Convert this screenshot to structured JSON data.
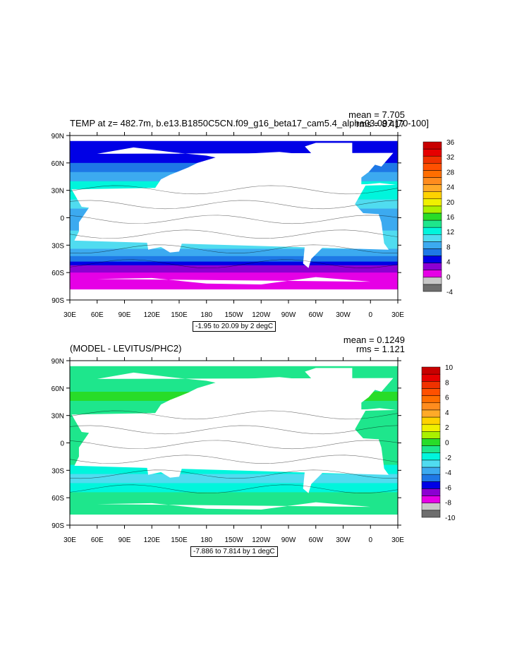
{
  "panels": [
    {
      "title": "TEMP at z= 482.7m, b.e13.B1850C5CN.f09_g16_beta17_cam5.4_alpha03.097 [70-100]",
      "mean_text": "mean = 7.705",
      "rms_text": "rms = 8.417",
      "contour_info": "-1.95 to 20.09 by 2 degC"
    },
    {
      "title": "(MODEL - LEVITUS/PHC2)",
      "mean_text": "mean = 0.1249",
      "rms_text": "rms = 1.121",
      "contour_info": "-7.886 to 7.814 by 1 degC"
    }
  ],
  "chart_data": [
    {
      "type": "heatmap",
      "title": "TEMP at z= 482.7m, b.e13.B1850C5CN.f09_g16_beta17_cam5.4_alpha03.097 [70-100]",
      "x_tick_labels": [
        "30E",
        "60E",
        "90E",
        "120E",
        "150E",
        "180",
        "150W",
        "120W",
        "90W",
        "60W",
        "30W",
        "0",
        "30E"
      ],
      "y_tick_labels": [
        "90N",
        "60N",
        "30N",
        "0",
        "30S",
        "60S",
        "90S"
      ],
      "xlim": [
        30,
        390
      ],
      "ylim": [
        -90,
        90
      ],
      "colorbar_levels": [
        -4,
        0,
        4,
        8,
        12,
        16,
        20,
        24,
        28,
        32,
        36
      ],
      "colorbar_colors": [
        "#6e6e6e",
        "#c8c8c8",
        "#e600e6",
        "#8c00d2",
        "#0000e6",
        "#1e78e6",
        "#3caaf0",
        "#50dcf0",
        "#00f5dc",
        "#1ee68c",
        "#28dc28",
        "#aaf000",
        "#f0f000",
        "#ffd200",
        "#ffaa28",
        "#ff8c1e",
        "#ff6e00",
        "#ff5000",
        "#f03200",
        "#e60000",
        "#c80000"
      ],
      "mean": 7.705,
      "rms": 8.417,
      "contour_range": [
        -1.95,
        20.09
      ],
      "contour_interval": 2
    },
    {
      "type": "heatmap",
      "title": "(MODEL - LEVITUS/PHC2)",
      "x_tick_labels": [
        "30E",
        "60E",
        "90E",
        "120E",
        "150E",
        "180",
        "150W",
        "120W",
        "90W",
        "60W",
        "30W",
        "0",
        "30E"
      ],
      "y_tick_labels": [
        "90N",
        "60N",
        "30N",
        "0",
        "30S",
        "60S",
        "90S"
      ],
      "xlim": [
        30,
        390
      ],
      "ylim": [
        -90,
        90
      ],
      "colorbar_levels": [
        -10,
        -8,
        -6,
        -4,
        -2,
        0,
        2,
        4,
        6,
        8,
        10
      ],
      "colorbar_colors": [
        "#6e6e6e",
        "#c8c8c8",
        "#e600e6",
        "#8c00d2",
        "#0000e6",
        "#1e78e6",
        "#3caaf0",
        "#50dcf0",
        "#00f5dc",
        "#1ee68c",
        "#28dc28",
        "#aaf000",
        "#f0f000",
        "#ffd200",
        "#ffaa28",
        "#ff8c1e",
        "#ff6e00",
        "#ff5000",
        "#f03200",
        "#e60000",
        "#c80000"
      ],
      "mean": 0.1249,
      "rms": 1.121,
      "contour_range": [
        -7.886,
        7.814
      ],
      "contour_interval": 1
    }
  ]
}
